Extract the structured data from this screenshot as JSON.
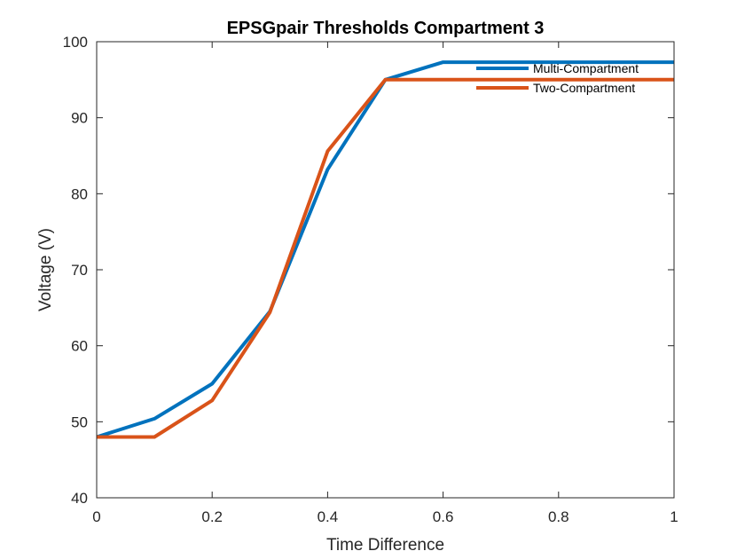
{
  "chart_data": {
    "type": "line",
    "title": "EPSGpair Thresholds Compartment 3",
    "xlabel": "Time Difference",
    "ylabel": "Voltage (V)",
    "xlim": [
      0,
      1
    ],
    "ylim": [
      40,
      100
    ],
    "xticks": [
      0,
      0.2,
      0.4,
      0.6,
      0.8,
      1
    ],
    "xtick_labels": [
      "0",
      "0.2",
      "0.4",
      "0.6",
      "0.8",
      "1"
    ],
    "yticks": [
      40,
      50,
      60,
      70,
      80,
      90,
      100
    ],
    "ytick_labels": [
      "40",
      "50",
      "60",
      "70",
      "80",
      "90",
      "100"
    ],
    "grid": false,
    "legend_position": "top-right",
    "series": [
      {
        "name": "Multi-Compartment",
        "color": "#0072BD",
        "x": [
          0,
          0.1,
          0.2,
          0.3,
          0.4,
          0.5,
          0.6,
          0.7,
          0.8,
          0.9,
          1.0
        ],
        "y": [
          48.0,
          50.4,
          55.0,
          64.5,
          83.2,
          95.0,
          97.3,
          97.3,
          97.3,
          97.3,
          97.3
        ]
      },
      {
        "name": "Two-Compartment",
        "color": "#D95319",
        "x": [
          0,
          0.1,
          0.2,
          0.3,
          0.4,
          0.5,
          0.6,
          0.7,
          0.8,
          0.9,
          1.0
        ],
        "y": [
          48.0,
          48.0,
          52.8,
          64.4,
          85.6,
          95.0,
          95.0,
          95.0,
          95.0,
          95.0,
          95.0
        ]
      }
    ]
  }
}
